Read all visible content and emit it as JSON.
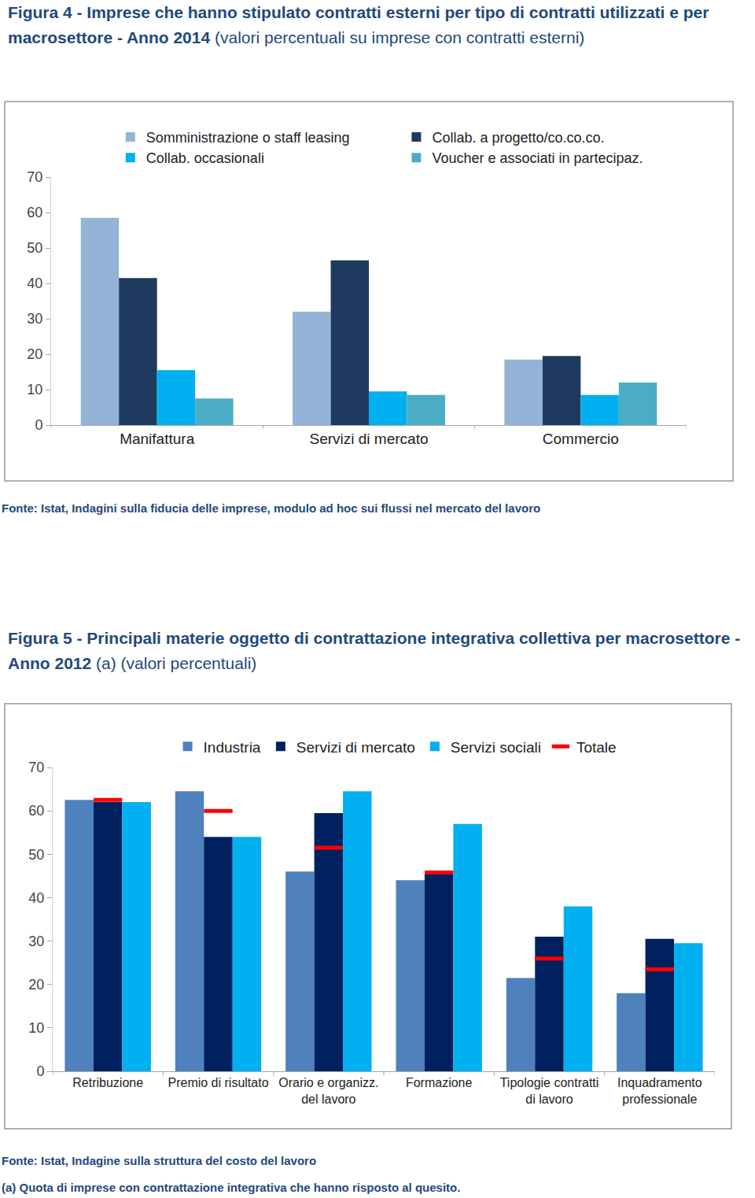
{
  "chart_data": [
    {
      "type": "bar",
      "title": "Figura 4 - Imprese che hanno stipulato contratti esterni per tipo di contratti utilizzati e per macrosettore - Anno 2014",
      "subtitle": "(valori percentuali su imprese con contratti esterni)",
      "source": "Fonte: Istat, Indagini sulla fiducia delle imprese, modulo ad hoc sui flussi nel mercato del lavoro",
      "categories": [
        "Manifattura",
        "Servizi di mercato",
        "Commercio"
      ],
      "series": [
        {
          "name": "Somministrazione o staff leasing",
          "color": "#95b3d7",
          "values": [
            58.5,
            32,
            18.5
          ]
        },
        {
          "name": "Collab. a progetto/co.co.co.",
          "color": "#1f3a5f",
          "values": [
            41.5,
            46.5,
            19.5
          ]
        },
        {
          "name": "Collab. occasionali",
          "color": "#00b0f0",
          "values": [
            15.5,
            9.5,
            8.5
          ]
        },
        {
          "name": "Voucher e associati in partecipaz.",
          "color": "#4bacc6",
          "values": [
            7.5,
            8.5,
            12
          ]
        }
      ],
      "ylim": [
        0,
        70
      ],
      "yticks": [
        0,
        10,
        20,
        30,
        40,
        50,
        60,
        70
      ],
      "grid": false,
      "legend": "top"
    },
    {
      "type": "bar",
      "title": "Figura 5 - Principali materie oggetto di contrattazione integrativa collettiva per macrosettore - Anno 2012",
      "subtitle": "(a) (valori percentuali)",
      "source": "Fonte: Istat, Indagine sulla struttura del costo del lavoro",
      "note": "(a) Quota di imprese con contrattazione integrativa che hanno risposto al quesito.",
      "categories": [
        "Retribuzione",
        "Premio di risultato",
        "Orario e organizz. del lavoro",
        "Formazione",
        "Tipologie contratti di lavoro",
        "Inquadramento professionale"
      ],
      "series": [
        {
          "name": "Industria",
          "color": "#4f81bd",
          "values": [
            62.5,
            64.5,
            46,
            44,
            21.5,
            18
          ]
        },
        {
          "name": "Servizi di mercato",
          "color": "#002060",
          "values": [
            62,
            54,
            59.5,
            45.5,
            31,
            30.5
          ]
        },
        {
          "name": "Servizi sociali",
          "color": "#00b0f0",
          "values": [
            62,
            54,
            64.5,
            57,
            38,
            29.5
          ]
        },
        {
          "name": "Totale",
          "color": "#ff0000",
          "type": "scatter",
          "marker": "dash",
          "values": [
            62.5,
            60,
            51.5,
            45.8,
            26,
            23.5
          ]
        }
      ],
      "ylim": [
        0,
        70
      ],
      "yticks": [
        0,
        10,
        20,
        30,
        40,
        50,
        60,
        70
      ],
      "grid": false,
      "legend": "top"
    }
  ]
}
